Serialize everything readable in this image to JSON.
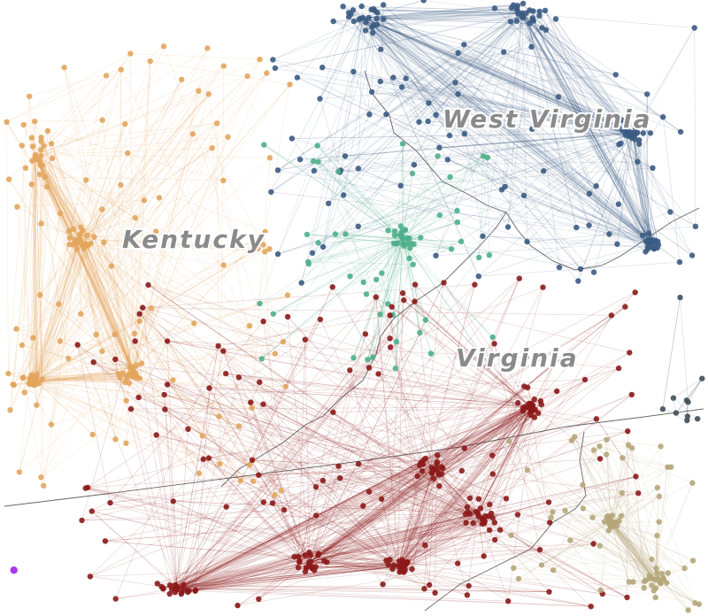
{
  "map": {
    "state_labels": [
      {
        "id": "west-virginia",
        "text": "West Virginia"
      },
      {
        "id": "kentucky",
        "text": "Kentucky"
      },
      {
        "id": "virginia",
        "text": "Virginia"
      }
    ],
    "clusters": [
      {
        "id": "kentucky-cluster",
        "color": "#e2a55c"
      },
      {
        "id": "west-virginia-cluster",
        "color": "#3b5b82"
      },
      {
        "id": "green-cluster",
        "color": "#4caf8a"
      },
      {
        "id": "virginia-cluster",
        "color": "#8b1a1a"
      },
      {
        "id": "tan-cluster",
        "color": "#b5a67a"
      },
      {
        "id": "dark-slate-cluster",
        "color": "#3f4f5a"
      },
      {
        "id": "purple-cluster",
        "color": "#a020f0"
      }
    ],
    "border_color": "#666666"
  }
}
